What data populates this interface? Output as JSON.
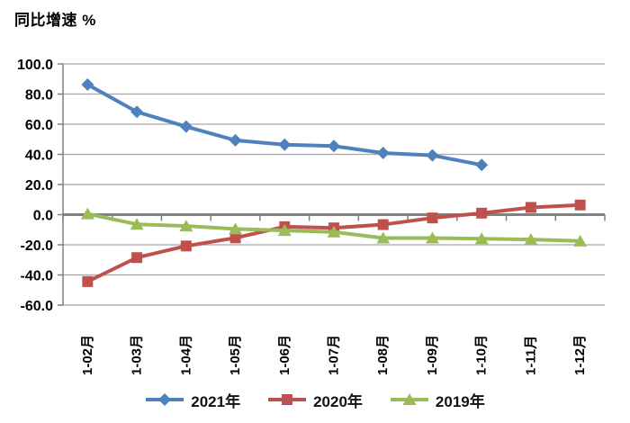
{
  "chart_data": {
    "type": "line",
    "title": "同比增速 %",
    "categories": [
      "1-02月",
      "1-03月",
      "1-04月",
      "1-05月",
      "1-06月",
      "1-07月",
      "1-08月",
      "1-09月",
      "1-10月",
      "1-11月",
      "1-12月"
    ],
    "series": [
      {
        "name": "2021年",
        "color": "#4F81BD",
        "marker": "diamond",
        "values": [
          86.3,
          68.2,
          58.4,
          49.3,
          46.4,
          45.5,
          40.9,
          39.3,
          33.0,
          null,
          null
        ]
      },
      {
        "name": "2020年",
        "color": "#C0504D",
        "marker": "square",
        "values": [
          -44.4,
          -28.5,
          -20.8,
          -15.4,
          -8.0,
          -8.8,
          -6.6,
          -2.2,
          1.0,
          4.8,
          6.4
        ]
      },
      {
        "name": "2019年",
        "color": "#9BBB59",
        "marker": "triangle",
        "values": [
          0.5,
          -6.4,
          -7.5,
          -9.5,
          -10.5,
          -11.5,
          -15.5,
          -15.5,
          -16.0,
          -16.5,
          -17.5
        ]
      }
    ],
    "y_ticks": [
      100,
      80,
      60,
      40,
      20,
      0,
      -20,
      -40,
      -60
    ],
    "y_tick_labels": [
      "100.0",
      "80.0",
      "60.0",
      "40.0",
      "20.0",
      "0.0",
      "-20.0",
      "-40.0",
      "-60.0"
    ],
    "ylim": [
      -60,
      100
    ],
    "grid": true,
    "legend_position": "bottom",
    "colors": {
      "gridline": "#A6A6A6",
      "axis": "#808080",
      "text": "#000000"
    }
  }
}
